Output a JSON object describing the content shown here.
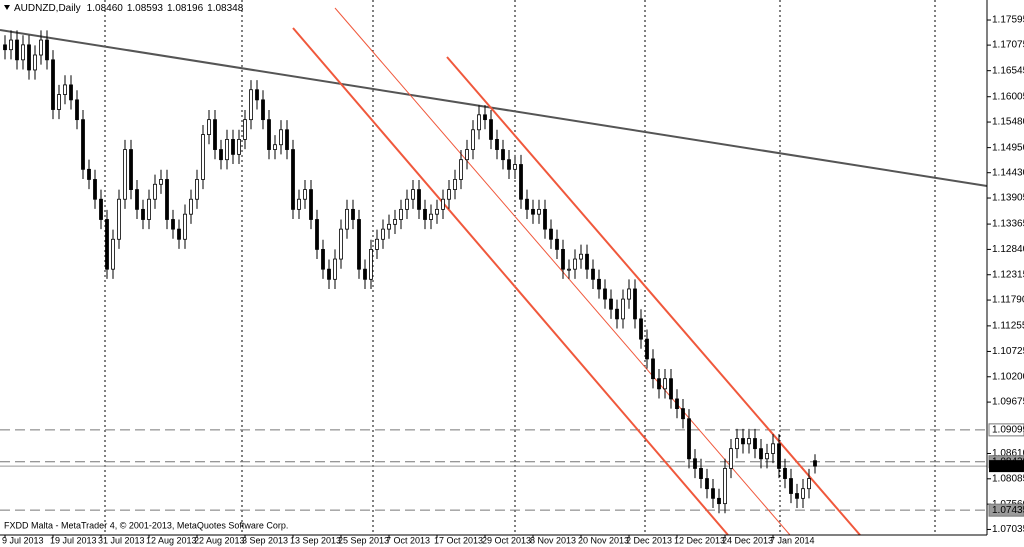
{
  "chart_data": {
    "type": "candlestick",
    "header": {
      "symbol": "AUDNZD,Daily",
      "ohlc": [
        "1.08460",
        "1.08593",
        "1.08196",
        "1.08348"
      ]
    },
    "footer": "FXDD Malta - MetaTrader 4, © 2001-2013, MetaQuotes Software Corp.",
    "ylim": [
      1.0692,
      1.1801
    ],
    "yticks": [
      1.17595,
      1.17075,
      1.16545,
      1.16005,
      {
        "value": 1.1548,
        "label": "1.15480"
      },
      {
        "value": 1.1495,
        "label": "1.14950"
      },
      {
        "value": 1.1443,
        "label": "1.14430"
      },
      1.13905,
      1.13365,
      {
        "value": 1.1284,
        "label": "1.12840"
      },
      1.12315,
      {
        "value": 1.1179,
        "label": "1.11790"
      },
      1.11255,
      1.10725,
      {
        "value": 1.102,
        "label": "1.10200"
      },
      1.09675,
      {
        "value": 1.0861,
        "label": "1.08610"
      },
      1.08085,
      {
        "value": 1.0756,
        "label": "1.07560"
      },
      1.07035
    ],
    "levels": [
      1.09099,
      1.08439,
      1.07435
    ],
    "bid": 1.08348,
    "categories": [
      "9 Jul 2013",
      null,
      null,
      null,
      null,
      null,
      null,
      null,
      "19 Jul 2013",
      null,
      null,
      null,
      null,
      null,
      null,
      null,
      "31 Jul 2013",
      null,
      null,
      null,
      null,
      null,
      null,
      null,
      "12 Aug 2013",
      null,
      null,
      null,
      null,
      null,
      null,
      null,
      "22 Aug 2013",
      null,
      null,
      null,
      null,
      null,
      null,
      null,
      "3 Sep 2013",
      null,
      null,
      null,
      null,
      null,
      null,
      null,
      "13 Sep 2013",
      null,
      null,
      null,
      null,
      null,
      null,
      null,
      "25 Sep 2013",
      null,
      null,
      null,
      null,
      null,
      null,
      null,
      "7 Oct 2013",
      null,
      null,
      null,
      null,
      null,
      null,
      null,
      "17 Oct 2013",
      null,
      null,
      null,
      null,
      null,
      null,
      null,
      "29 Oct 2013",
      null,
      null,
      null,
      null,
      null,
      null,
      null,
      "8 Nov 2013",
      null,
      null,
      null,
      null,
      null,
      null,
      null,
      "20 Nov 2013",
      null,
      null,
      null,
      null,
      null,
      null,
      null,
      "2 Dec 2013",
      null,
      null,
      null,
      null,
      null,
      null,
      null,
      "12 Dec 2013",
      null,
      null,
      null,
      null,
      null,
      null,
      null,
      "24 Dec 2013",
      null,
      null,
      null,
      null,
      null,
      null,
      null,
      "7 Jan 2014",
      null,
      null,
      null,
      null,
      null,
      null,
      null
    ],
    "candles": [
      [
        1.1708,
        1.1728,
        1.1678,
        1.1698
      ],
      [
        1.1698,
        1.1738,
        1.1678,
        1.1718
      ],
      [
        1.1718,
        1.1738,
        1.1657,
        1.1677
      ],
      [
        1.1677,
        1.1728,
        1.1657,
        1.1708
      ],
      [
        1.1708,
        1.1728,
        1.1636,
        1.1656
      ],
      [
        1.1656,
        1.1707,
        1.1636,
        1.1687
      ],
      [
        1.1687,
        1.1738,
        1.1667,
        1.1718
      ],
      [
        1.1718,
        1.1738,
        1.1657,
        1.1677
      ],
      [
        1.1677,
        1.1697,
        1.1554,
        1.1574
      ],
      [
        1.1574,
        1.1625,
        1.1554,
        1.1605
      ],
      [
        1.1605,
        1.1645,
        1.1585,
        1.1625
      ],
      [
        1.1625,
        1.1645,
        1.1574,
        1.1594
      ],
      [
        1.1594,
        1.1614,
        1.1533,
        1.1553
      ],
      [
        1.1553,
        1.1573,
        1.143,
        1.145
      ],
      [
        1.145,
        1.147,
        1.1409,
        1.1429
      ],
      [
        1.1429,
        1.1449,
        1.1368,
        1.1388
      ],
      [
        1.1388,
        1.1408,
        1.1326,
        1.1346
      ],
      [
        1.1346,
        1.1366,
        1.1223,
        1.1243
      ],
      [
        1.1243,
        1.1325,
        1.1223,
        1.1305
      ],
      [
        1.1305,
        1.1408,
        1.1285,
        1.1388
      ],
      [
        1.1388,
        1.1511,
        1.1368,
        1.1491
      ],
      [
        1.1491,
        1.1511,
        1.1388,
        1.1408
      ],
      [
        1.1408,
        1.1428,
        1.1347,
        1.1367
      ],
      [
        1.1367,
        1.1387,
        1.1326,
        1.1346
      ],
      [
        1.1346,
        1.1408,
        1.1326,
        1.1388
      ],
      [
        1.1388,
        1.1439,
        1.1368,
        1.1419
      ],
      [
        1.1419,
        1.1449,
        1.1399,
        1.1429
      ],
      [
        1.1429,
        1.1449,
        1.1326,
        1.1346
      ],
      [
        1.1346,
        1.1366,
        1.1306,
        1.1326
      ],
      [
        1.1326,
        1.1346,
        1.1285,
        1.1305
      ],
      [
        1.1305,
        1.1377,
        1.1285,
        1.1357
      ],
      [
        1.1357,
        1.1408,
        1.1337,
        1.1388
      ],
      [
        1.1388,
        1.1449,
        1.1368,
        1.1429
      ],
      [
        1.1429,
        1.1542,
        1.1409,
        1.1522
      ],
      [
        1.1522,
        1.1573,
        1.1502,
        1.1553
      ],
      [
        1.1553,
        1.1573,
        1.1471,
        1.1491
      ],
      [
        1.1491,
        1.1511,
        1.145,
        1.147
      ],
      [
        1.147,
        1.1532,
        1.145,
        1.1512
      ],
      [
        1.1512,
        1.1532,
        1.1461,
        1.1481
      ],
      [
        1.1481,
        1.1532,
        1.1461,
        1.1512
      ],
      [
        1.1512,
        1.1573,
        1.1492,
        1.1553
      ],
      [
        1.1553,
        1.1635,
        1.1533,
        1.1615
      ],
      [
        1.1615,
        1.1635,
        1.1574,
        1.1594
      ],
      [
        1.1594,
        1.1614,
        1.1533,
        1.1553
      ],
      [
        1.1553,
        1.1573,
        1.1471,
        1.1491
      ],
      [
        1.1491,
        1.1521,
        1.1471,
        1.1501
      ],
      [
        1.1501,
        1.1552,
        1.1481,
        1.1532
      ],
      [
        1.1532,
        1.1552,
        1.1471,
        1.1491
      ],
      [
        1.1491,
        1.1511,
        1.1347,
        1.1367
      ],
      [
        1.1367,
        1.1408,
        1.1347,
        1.1388
      ],
      [
        1.1388,
        1.1428,
        1.1368,
        1.1408
      ],
      [
        1.1408,
        1.1428,
        1.1326,
        1.1346
      ],
      [
        1.1346,
        1.1366,
        1.1264,
        1.1284
      ],
      [
        1.1284,
        1.1304,
        1.1223,
        1.1243
      ],
      [
        1.1243,
        1.1263,
        1.1202,
        1.1222
      ],
      [
        1.1222,
        1.1284,
        1.1202,
        1.1264
      ],
      [
        1.1264,
        1.1346,
        1.1244,
        1.1326
      ],
      [
        1.1326,
        1.1387,
        1.1306,
        1.1367
      ],
      [
        1.1367,
        1.1387,
        1.1326,
        1.1346
      ],
      [
        1.1346,
        1.1366,
        1.1223,
        1.1243
      ],
      [
        1.1243,
        1.1263,
        1.1202,
        1.1222
      ],
      [
        1.1222,
        1.1304,
        1.1202,
        1.1284
      ],
      [
        1.1284,
        1.1325,
        1.1264,
        1.1305
      ],
      [
        1.1305,
        1.1346,
        1.1285,
        1.1326
      ],
      [
        1.1326,
        1.1356,
        1.1306,
        1.1336
      ],
      [
        1.1336,
        1.1366,
        1.1316,
        1.1346
      ],
      [
        1.1346,
        1.1387,
        1.1326,
        1.1367
      ],
      [
        1.1367,
        1.1408,
        1.1347,
        1.1388
      ],
      [
        1.1388,
        1.1428,
        1.1368,
        1.1408
      ],
      [
        1.1408,
        1.1428,
        1.1347,
        1.1367
      ],
      [
        1.1367,
        1.1387,
        1.1326,
        1.1346
      ],
      [
        1.1346,
        1.1377,
        1.1326,
        1.1357
      ],
      [
        1.1357,
        1.1387,
        1.1337,
        1.1367
      ],
      [
        1.1367,
        1.1408,
        1.1347,
        1.1388
      ],
      [
        1.1388,
        1.1428,
        1.1368,
        1.1408
      ],
      [
        1.1408,
        1.1449,
        1.1388,
        1.1429
      ],
      [
        1.1429,
        1.149,
        1.1409,
        1.147
      ],
      [
        1.147,
        1.1511,
        1.145,
        1.1491
      ],
      [
        1.1491,
        1.1552,
        1.1471,
        1.1532
      ],
      [
        1.1532,
        1.1583,
        1.1512,
        1.1563
      ],
      [
        1.1563,
        1.1583,
        1.1533,
        1.1553
      ],
      [
        1.1553,
        1.1573,
        1.1492,
        1.1512
      ],
      [
        1.1512,
        1.1532,
        1.1471,
        1.1491
      ],
      [
        1.1491,
        1.1511,
        1.145,
        1.147
      ],
      [
        1.147,
        1.149,
        1.143,
        1.145
      ],
      [
        1.145,
        1.148,
        1.143,
        1.146
      ],
      [
        1.146,
        1.148,
        1.1368,
        1.1388
      ],
      [
        1.1388,
        1.1408,
        1.1347,
        1.1367
      ],
      [
        1.1367,
        1.1387,
        1.1337,
        1.1357
      ],
      [
        1.1357,
        1.1387,
        1.1337,
        1.1367
      ],
      [
        1.1367,
        1.1387,
        1.1306,
        1.1326
      ],
      [
        1.1326,
        1.1346,
        1.1285,
        1.1305
      ],
      [
        1.1305,
        1.1325,
        1.1264,
        1.1284
      ],
      [
        1.1284,
        1.1304,
        1.1223,
        1.1243
      ],
      [
        1.1243,
        1.1263,
        1.1223,
        1.1243
      ],
      [
        1.1243,
        1.1284,
        1.1223,
        1.1264
      ],
      [
        1.1264,
        1.1294,
        1.1244,
        1.1274
      ],
      [
        1.1274,
        1.1294,
        1.1223,
        1.1243
      ],
      [
        1.1243,
        1.1263,
        1.1202,
        1.1222
      ],
      [
        1.1222,
        1.1242,
        1.1182,
        1.1202
      ],
      [
        1.1202,
        1.1222,
        1.1161,
        1.1181
      ],
      [
        1.1181,
        1.1201,
        1.114,
        1.116
      ],
      [
        1.116,
        1.118,
        1.112,
        1.114
      ],
      [
        1.114,
        1.1201,
        1.112,
        1.1181
      ],
      [
        1.1181,
        1.1222,
        1.1161,
        1.1202
      ],
      [
        1.1202,
        1.1222,
        1.112,
        1.114
      ],
      [
        1.114,
        1.116,
        1.1078,
        1.1098
      ],
      [
        1.1098,
        1.1118,
        1.1037,
        1.1057
      ],
      [
        1.1057,
        1.1077,
        1.0996,
        1.1016
      ],
      [
        1.1016,
        1.1036,
        1.0975,
        1.0995
      ],
      [
        1.0995,
        1.1036,
        1.0975,
        1.1016
      ],
      [
        1.1016,
        1.1036,
        1.0954,
        1.0974
      ],
      [
        1.0974,
        1.0994,
        1.0934,
        1.0954
      ],
      [
        1.0954,
        1.0974,
        1.0913,
        1.0933
      ],
      [
        1.0933,
        1.0953,
        1.083,
        1.085
      ],
      [
        1.085,
        1.087,
        1.081,
        1.083
      ],
      [
        1.083,
        1.085,
        1.0789,
        1.0809
      ],
      [
        1.0809,
        1.0829,
        1.0768,
        1.0788
      ],
      [
        1.0788,
        1.0808,
        1.0748,
        1.0768
      ],
      [
        1.0768,
        1.0788,
        1.0737,
        1.0757
      ],
      [
        1.0757,
        1.085,
        1.0737,
        1.083
      ],
      [
        1.083,
        1.0891,
        1.081,
        1.0871
      ],
      [
        1.0871,
        1.0912,
        1.0851,
        1.0892
      ],
      [
        1.0892,
        1.0912,
        1.0861,
        1.0881
      ],
      [
        1.0881,
        1.0912,
        1.0861,
        1.0892
      ],
      [
        1.0892,
        1.0912,
        1.0851,
        1.0871
      ],
      [
        1.0871,
        1.0891,
        1.083,
        1.085
      ],
      [
        1.085,
        1.0881,
        1.083,
        1.0861
      ],
      [
        1.0861,
        1.0901,
        1.0841,
        1.0881
      ],
      [
        1.0881,
        1.0901,
        1.081,
        1.083
      ],
      [
        1.083,
        1.085,
        1.0789,
        1.0809
      ],
      [
        1.0809,
        1.0829,
        1.0758,
        1.0778
      ],
      [
        1.0778,
        1.0798,
        1.0748,
        1.0768
      ],
      [
        1.0768,
        1.0808,
        1.0748,
        1.0788
      ],
      [
        1.0788,
        1.0829,
        1.0768,
        1.0809
      ],
      [
        1.0846,
        1.08593,
        1.08196,
        1.08348
      ]
    ]
  }
}
